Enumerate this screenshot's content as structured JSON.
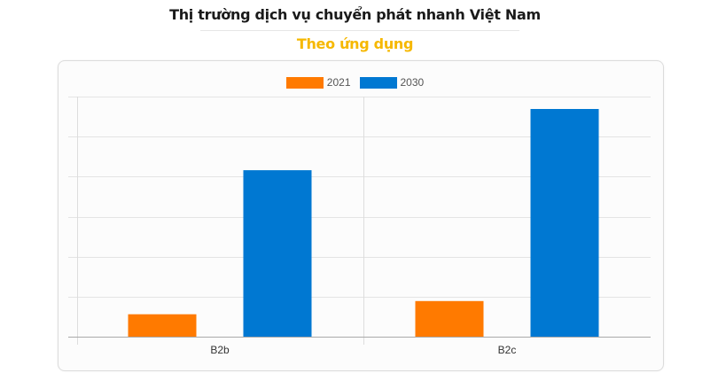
{
  "header": {
    "title": "Thị trường dịch vụ chuyển phát nhanh Việt Nam",
    "subtitle": "Theo ứng dụng"
  },
  "legend": [
    {
      "label": "2021",
      "color": "#ff7a00"
    },
    {
      "label": "2030",
      "color": "#0078d2"
    }
  ],
  "colors": {
    "series_2021": "#ff7a00",
    "series_2030": "#0078d2",
    "subtitle": "#f6b800",
    "grid": "#e4e4e4",
    "axis": "#aaaaaa"
  },
  "chart_data": {
    "type": "bar",
    "title": "Thị trường dịch vụ chuyển phát nhanh Việt Nam",
    "subtitle": "Theo ứng dụng",
    "categories": [
      "B2b",
      "B2c"
    ],
    "series": [
      {
        "name": "2021",
        "values": [
          0.56,
          0.89
        ]
      },
      {
        "name": "2030",
        "values": [
          4.16,
          5.69
        ]
      }
    ],
    "xlabel": "",
    "ylabel": "",
    "ylim": [
      0,
      6
    ],
    "y_ticks_shown": false,
    "grid": true,
    "gridline_count": 6,
    "legend_position": "top",
    "note": "Y-axis has no tick labels; values are relative, measured in gridline units"
  }
}
